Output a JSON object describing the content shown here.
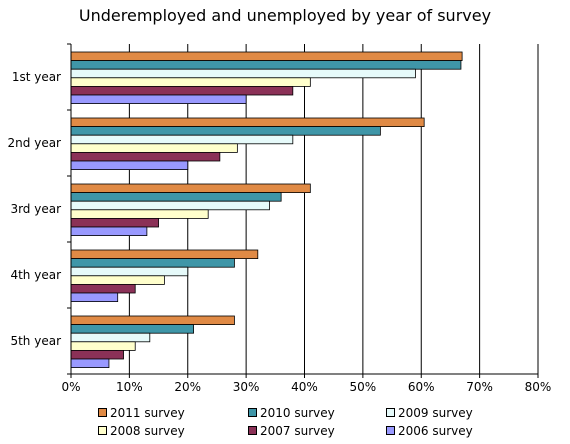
{
  "chart_data": {
    "type": "bar",
    "orientation": "horizontal",
    "title": "Underemployed and unemployed by year of survey",
    "categories": [
      "1st year",
      "2nd year",
      "3rd year",
      "4th year",
      "5th year"
    ],
    "xlim": [
      0,
      80
    ],
    "x_ticks": [
      "0%",
      "10%",
      "20%",
      "30%",
      "40%",
      "50%",
      "60%",
      "70%",
      "80%"
    ],
    "grid": "vertical",
    "legend_position": "bottom",
    "series": [
      {
        "name": "2011 survey",
        "color": "#e08a45",
        "values": [
          67,
          60.5,
          41,
          32,
          28
        ]
      },
      {
        "name": "2010 survey",
        "color": "#3f96a8",
        "values": [
          66.8,
          53,
          36,
          28,
          21
        ]
      },
      {
        "name": "2009 survey",
        "color": "#e6fafa",
        "values": [
          59,
          38,
          34,
          20,
          13.5
        ]
      },
      {
        "name": "2008 survey",
        "color": "#ffffcc",
        "values": [
          41,
          28.5,
          23.5,
          16,
          11
        ]
      },
      {
        "name": "2007 survey",
        "color": "#8b3157",
        "values": [
          38,
          25.5,
          15,
          11,
          9
        ]
      },
      {
        "name": "2006 survey",
        "color": "#9999ff",
        "values": [
          30,
          20,
          13,
          8,
          6.5
        ]
      }
    ]
  }
}
